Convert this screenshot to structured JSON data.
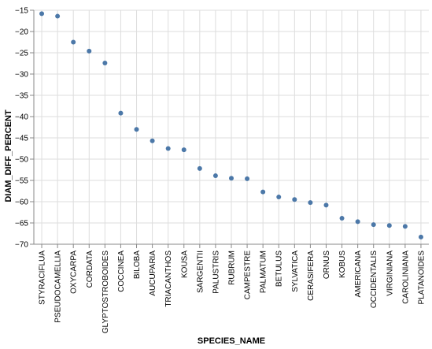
{
  "chart_data": {
    "type": "scatter",
    "xlabel": "SPECIES_NAME",
    "ylabel": "DIAM_DIFF_PERCENT",
    "ylim": [
      -70,
      -15
    ],
    "yticks": [
      -15,
      -20,
      -25,
      -30,
      -35,
      -40,
      -45,
      -50,
      -55,
      -60,
      -65,
      -70
    ],
    "grid": true,
    "point_color": "#4c78a8",
    "categories": [
      "STYRACIFLUA",
      "PSEUDOCAMELLIA",
      "OXYCARPA",
      "CORDATA",
      "GLYPTOSTROBOIDES",
      "COCCINEA",
      "BILOBA",
      "AUCUPARIA",
      "TRIACANTHOS",
      "KOUSA",
      "SARGENTII",
      "PALUSTRIS",
      "RUBRUM",
      "CAMPESTRE",
      "PALMATUM",
      "BETULUS",
      "SYLVATICA",
      "CERASIFERA",
      "ORNUS",
      "KOBUS",
      "AMERICANA",
      "OCCIDENTALIS",
      "VIRGINIANA",
      "CAROLINIANA",
      "PLATANOIDES"
    ],
    "values": [
      -15.8,
      -16.4,
      -22.5,
      -24.6,
      -27.4,
      -39.2,
      -43.0,
      -45.7,
      -47.5,
      -47.8,
      -52.2,
      -53.9,
      -54.5,
      -54.6,
      -57.7,
      -58.9,
      -59.5,
      -60.2,
      -60.8,
      -63.9,
      -64.7,
      -65.4,
      -65.6,
      -65.8,
      -68.3
    ]
  }
}
